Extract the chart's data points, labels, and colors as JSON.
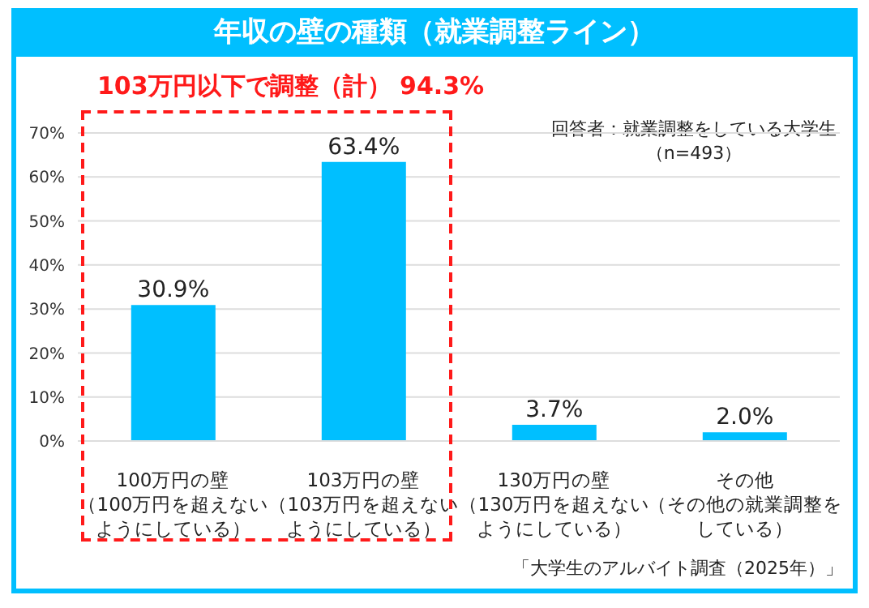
{
  "chart_data": {
    "type": "bar",
    "title": "年収の壁の種類（就業調整ライン）",
    "categories": [
      "100万円の壁（100万円を超えないようにしている）",
      "103万円の壁（103万円を超えないようにしている）",
      "130万円の壁（130万円を超えないようにしている）",
      "その他（その他の就業調整をしている）"
    ],
    "values": [
      30.9,
      63.4,
      3.7,
      2.0
    ],
    "value_labels": [
      "30.9%",
      "63.4%",
      "3.7%",
      "2.0%"
    ],
    "color": "#00bfff",
    "ylim": [
      0,
      70
    ],
    "yticks": [
      {
        "value": 0,
        "label": "0%"
      },
      {
        "value": 10,
        "label": "10%"
      },
      {
        "value": 20,
        "label": "20%"
      },
      {
        "value": 30,
        "label": "30%"
      },
      {
        "value": 40,
        "label": "40%"
      },
      {
        "value": 50,
        "label": "50%"
      },
      {
        "value": 60,
        "label": "60%"
      },
      {
        "value": 70,
        "label": "70%"
      }
    ],
    "grid": "y",
    "annotations": [
      "103万円以下で調整（計） 94.3%",
      "回答者：就業調整をしている大学生（n=493）",
      "「大学生のアルバイト調査（2025年）」"
    ]
  }
}
